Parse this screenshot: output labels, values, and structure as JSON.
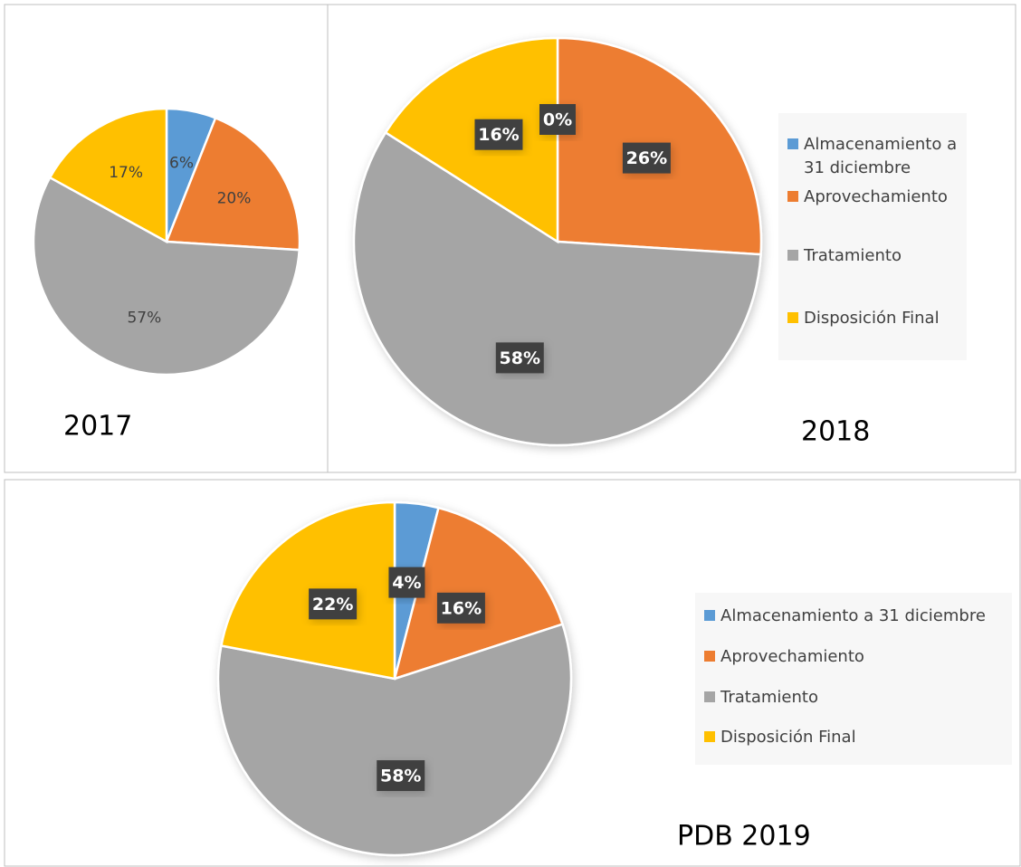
{
  "chart_data": [
    {
      "type": "pie",
      "title": "2017",
      "values": [
        6,
        20,
        57,
        17
      ],
      "value_labels": [
        "6%",
        "20%",
        "57%",
        "17%"
      ],
      "colors": [
        "#5b9bd5",
        "#ed7d31",
        "#a5a5a5",
        "#ffc000"
      ],
      "label_style": "plain"
    },
    {
      "type": "pie",
      "title": "2018",
      "categories": [
        "Almacenamiento a 31 diciembre",
        "Aprovechamiento",
        "Tratamiento",
        "Disposición Final"
      ],
      "values": [
        0,
        26,
        58,
        16
      ],
      "value_labels": [
        "0%",
        "26%",
        "58%",
        "16%"
      ],
      "colors": [
        "#5b9bd5",
        "#ed7d31",
        "#a5a5a5",
        "#ffc000"
      ],
      "label_style": "boxed",
      "legend": "right"
    },
    {
      "type": "pie",
      "title": "PDB 2019",
      "categories": [
        "Almacenamiento a 31 diciembre",
        "Aprovechamiento",
        "Tratamiento",
        "Disposición Final"
      ],
      "values": [
        4,
        16,
        58,
        22
      ],
      "value_labels": [
        "4%",
        "16%",
        "58%",
        "22%"
      ],
      "colors": [
        "#5b9bd5",
        "#ed7d31",
        "#a5a5a5",
        "#ffc000"
      ],
      "label_style": "boxed",
      "legend": "right"
    }
  ]
}
